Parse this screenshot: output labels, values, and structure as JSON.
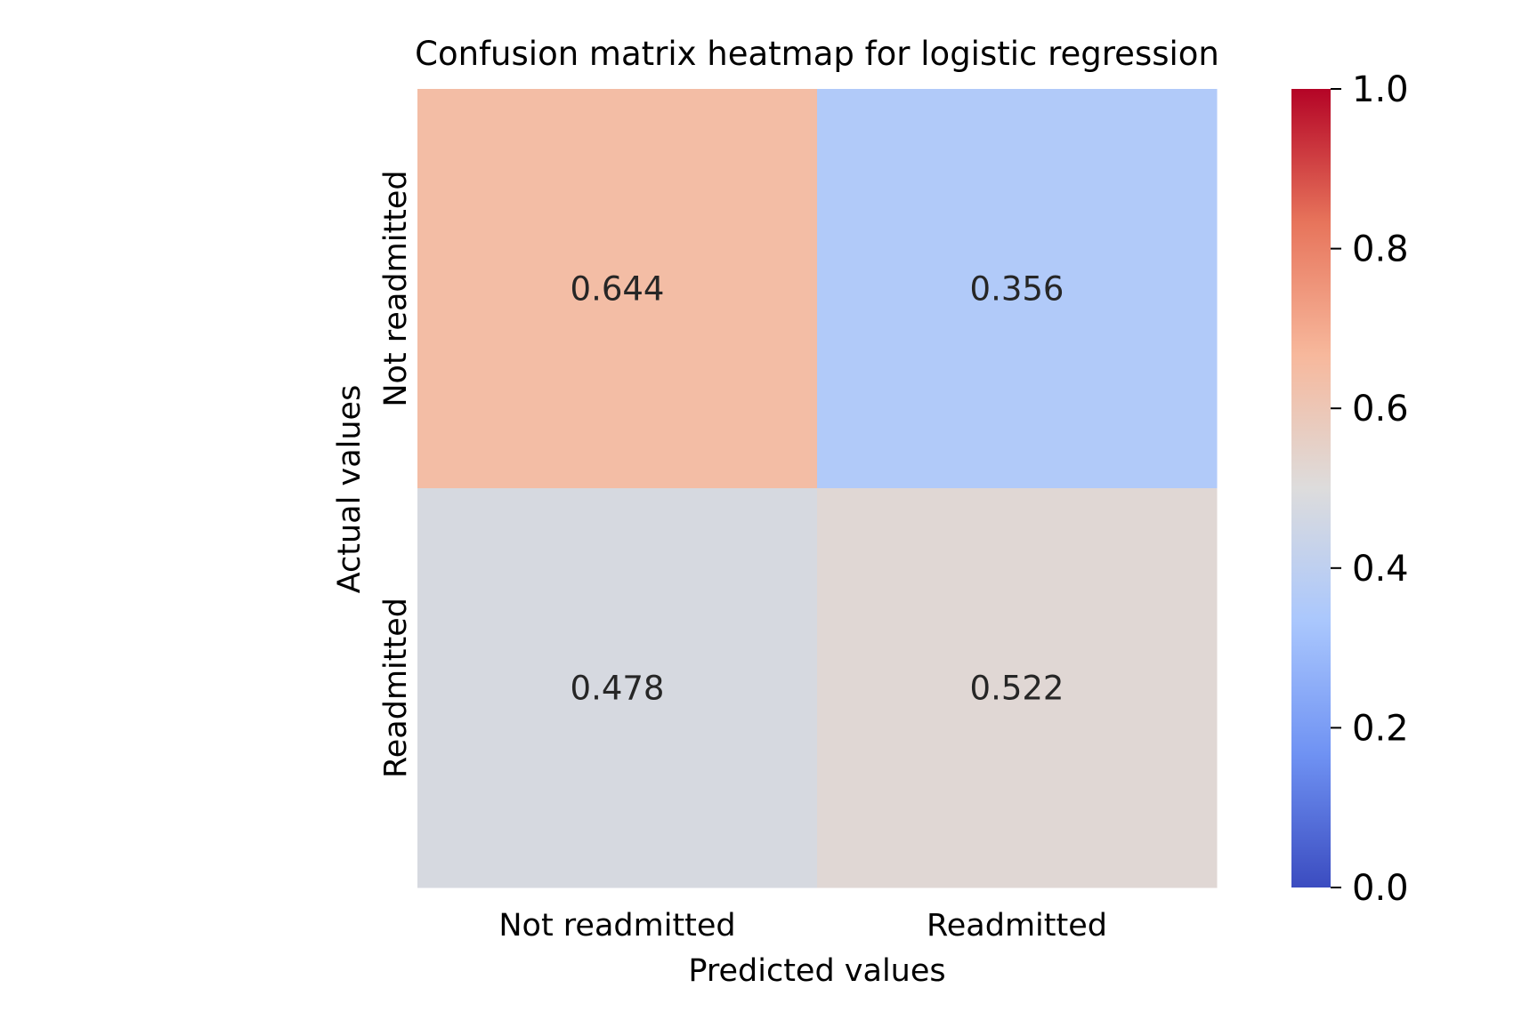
{
  "chart_data": {
    "type": "heatmap",
    "title": "Confusion matrix heatmap for logistic regression",
    "xlabel": "Predicted values",
    "ylabel": "Actual values",
    "x_categories": [
      "Not readmitted",
      "Readmitted"
    ],
    "y_categories": [
      "Not readmitted",
      "Readmitted"
    ],
    "values": [
      [
        0.644,
        0.356
      ],
      [
        0.478,
        0.522
      ]
    ],
    "value_labels": [
      [
        "0.644",
        "0.356"
      ],
      [
        "0.478",
        "0.522"
      ]
    ],
    "colorbar": {
      "range": [
        0.0,
        1.0
      ],
      "ticks": [
        0.0,
        0.2,
        0.4,
        0.6,
        0.8,
        1.0
      ],
      "tick_labels": [
        "0.0",
        "0.2",
        "0.4",
        "0.6",
        "0.8",
        "1.0"
      ],
      "colormap": "coolwarm",
      "colormap_stops": [
        "#3b4cc0",
        "#6f92f3",
        "#aac7fd",
        "#dddcdc",
        "#f7b89c",
        "#e7745b",
        "#b40426"
      ]
    },
    "annotation_color": "#262626",
    "text_color": "#000000"
  }
}
